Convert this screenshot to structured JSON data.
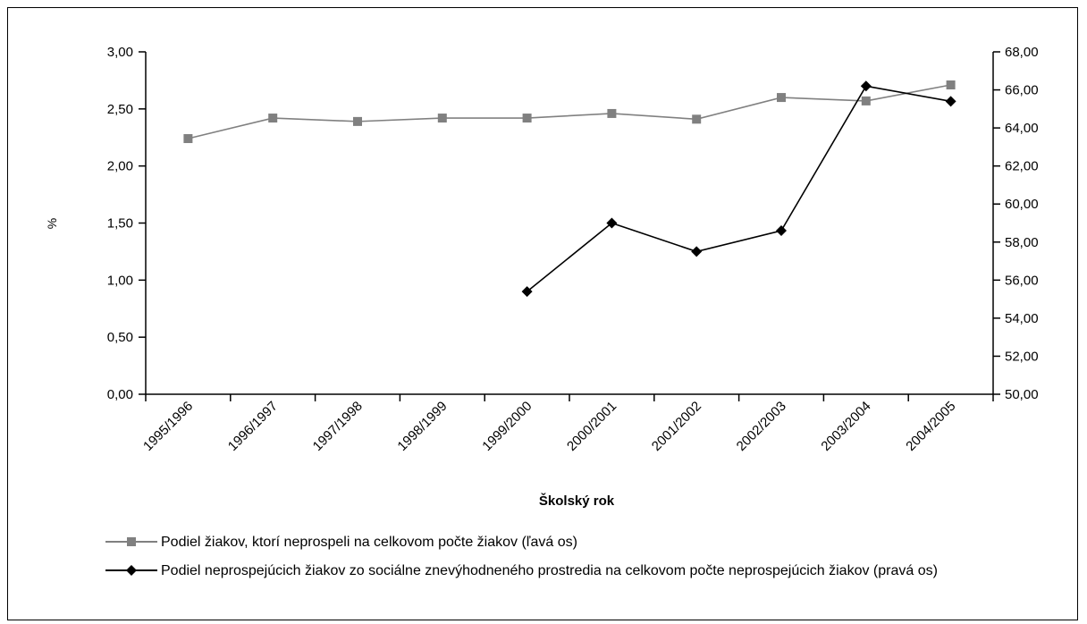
{
  "chart_data": {
    "type": "line",
    "xlabel": "Školský rok",
    "ylabel": "%",
    "categories": [
      "1995/1996",
      "1996/1997",
      "1997/1998",
      "1998/1999",
      "1999/2000",
      "2000/2001",
      "2001/2002",
      "2002/2003",
      "2003/2004",
      "2004/2005"
    ],
    "y_left": {
      "range": [
        0,
        3
      ],
      "ticks": [
        "0,00",
        "0,50",
        "1,00",
        "1,50",
        "2,00",
        "2,50",
        "3,00"
      ],
      "tick_values": [
        0,
        0.5,
        1,
        1.5,
        2,
        2.5,
        3
      ]
    },
    "y_right": {
      "range": [
        50,
        68
      ],
      "ticks": [
        "50,00",
        "52,00",
        "54,00",
        "56,00",
        "58,00",
        "60,00",
        "62,00",
        "64,00",
        "66,00",
        "68,00"
      ],
      "tick_values": [
        50,
        52,
        54,
        56,
        58,
        60,
        62,
        64,
        66,
        68
      ]
    },
    "series": [
      {
        "name": "Podiel žiakov, ktorí neprospeli na celkovom počte žiakov (ľavá os)",
        "axis": "left",
        "color": "#808080",
        "marker": "square",
        "values": [
          2.24,
          2.42,
          2.39,
          2.42,
          2.42,
          2.46,
          2.41,
          2.6,
          2.57,
          2.71
        ]
      },
      {
        "name": "Podiel neprospejúcich žiakov zo sociálne znevýhodneného prostredia na celkovom počte neprospejúcich žiakov (pravá os)",
        "axis": "right",
        "color": "#000000",
        "marker": "diamond",
        "values": [
          null,
          null,
          null,
          null,
          55.4,
          59.0,
          57.5,
          58.6,
          66.2,
          65.4
        ]
      }
    ],
    "legend_position": "bottom",
    "grid": false
  }
}
